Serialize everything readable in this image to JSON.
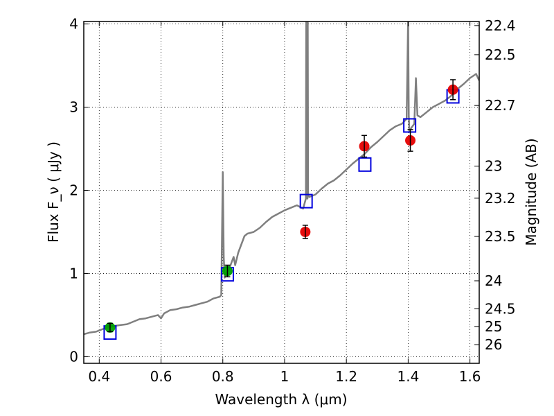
{
  "chart_data": {
    "type": "scatter",
    "xlabel": "Wavelength  λ (μm)",
    "ylabel": "Flux  F_ν  ( μJy )",
    "ylabel_right": "Magnitude (AB)",
    "xlim": [
      0.35,
      1.63
    ],
    "ylim": [
      -0.08,
      4.03
    ],
    "grid": true,
    "x_ticks": [
      {
        "value": 0.4,
        "label": "0.4"
      },
      {
        "value": 0.6,
        "label": "0.6"
      },
      {
        "value": 0.8,
        "label": "0.8"
      },
      {
        "value": 1.0,
        "label": "1"
      },
      {
        "value": 1.2,
        "label": "1.2"
      },
      {
        "value": 1.4,
        "label": "1.4"
      },
      {
        "value": 1.6,
        "label": "1.6"
      }
    ],
    "y_ticks": [
      {
        "value": 0,
        "label": "0"
      },
      {
        "value": 1,
        "label": "1"
      },
      {
        "value": 2,
        "label": "2"
      },
      {
        "value": 3,
        "label": "3"
      },
      {
        "value": 4,
        "label": "4"
      }
    ],
    "mag_ticks": [
      {
        "value": 22.4,
        "label": "22.4"
      },
      {
        "value": 22.5,
        "label": "22.5"
      },
      {
        "value": 22.7,
        "label": "22.7"
      },
      {
        "value": 23.0,
        "label": "23"
      },
      {
        "value": 23.2,
        "label": "23.2"
      },
      {
        "value": 23.5,
        "label": "23.5"
      },
      {
        "value": 24.0,
        "label": "24"
      },
      {
        "value": 24.5,
        "label": "24.5"
      },
      {
        "value": 25.0,
        "label": "25"
      },
      {
        "value": 26.0,
        "label": "26"
      }
    ],
    "model_spectrum": {
      "color": "#7f7f7f",
      "x": [
        0.35,
        0.37,
        0.39,
        0.41,
        0.43,
        0.45,
        0.47,
        0.49,
        0.51,
        0.53,
        0.55,
        0.57,
        0.59,
        0.6,
        0.61,
        0.63,
        0.65,
        0.67,
        0.69,
        0.71,
        0.73,
        0.75,
        0.77,
        0.79,
        0.795,
        0.8,
        0.803,
        0.806,
        0.81,
        0.82,
        0.83,
        0.835,
        0.84,
        0.85,
        0.86,
        0.87,
        0.88,
        0.9,
        0.92,
        0.94,
        0.96,
        0.98,
        1.0,
        1.02,
        1.04,
        1.06,
        1.069,
        1.07,
        1.071,
        1.074,
        1.075,
        1.076,
        1.08,
        1.1,
        1.12,
        1.14,
        1.16,
        1.18,
        1.2,
        1.22,
        1.24,
        1.26,
        1.28,
        1.3,
        1.32,
        1.34,
        1.36,
        1.38,
        1.395,
        1.4,
        1.402,
        1.404,
        1.41,
        1.42,
        1.425,
        1.43,
        1.44,
        1.46,
        1.48,
        1.5,
        1.52,
        1.54,
        1.56,
        1.58,
        1.6,
        1.62,
        1.63
      ],
      "y": [
        0.27,
        0.29,
        0.3,
        0.33,
        0.35,
        0.37,
        0.38,
        0.39,
        0.42,
        0.45,
        0.46,
        0.48,
        0.5,
        0.46,
        0.52,
        0.56,
        0.57,
        0.59,
        0.6,
        0.62,
        0.64,
        0.66,
        0.7,
        0.72,
        0.74,
        2.22,
        1.2,
        0.95,
        1.0,
        1.05,
        1.15,
        1.2,
        1.1,
        1.25,
        1.35,
        1.45,
        1.48,
        1.5,
        1.55,
        1.62,
        1.68,
        1.72,
        1.76,
        1.79,
        1.82,
        1.78,
        1.9,
        4.1,
        1.95,
        1.9,
        4.1,
        1.95,
        1.92,
        1.95,
        2.02,
        2.08,
        2.12,
        2.18,
        2.25,
        2.32,
        2.38,
        2.44,
        2.52,
        2.58,
        2.65,
        2.72,
        2.77,
        2.8,
        2.86,
        4.1,
        2.9,
        2.7,
        2.75,
        2.8,
        3.35,
        2.9,
        2.88,
        2.94,
        3.0,
        3.04,
        3.08,
        3.14,
        3.22,
        3.28,
        3.35,
        3.4,
        3.32
      ]
    },
    "series": [
      {
        "marker": "circle",
        "color": "#e50000",
        "points": [
          {
            "x": 1.067,
            "y": 1.5,
            "err": 0.08
          },
          {
            "x": 1.258,
            "y": 2.53,
            "err": 0.13
          },
          {
            "x": 1.407,
            "y": 2.6,
            "err": 0.13
          },
          {
            "x": 1.545,
            "y": 3.21,
            "err": 0.12
          }
        ]
      },
      {
        "marker": "circle",
        "color": "#00a000",
        "points": [
          {
            "x": 0.435,
            "y": 0.35,
            "err": 0.05
          },
          {
            "x": 0.815,
            "y": 1.03,
            "err": 0.07
          }
        ]
      },
      {
        "marker": "square-open",
        "color": "#0000dd",
        "points": [
          {
            "x": 0.435,
            "y": 0.29
          },
          {
            "x": 0.815,
            "y": 0.99
          },
          {
            "x": 1.07,
            "y": 1.87
          },
          {
            "x": 1.26,
            "y": 2.31
          },
          {
            "x": 1.405,
            "y": 2.78
          },
          {
            "x": 1.545,
            "y": 3.13
          }
        ]
      }
    ]
  }
}
